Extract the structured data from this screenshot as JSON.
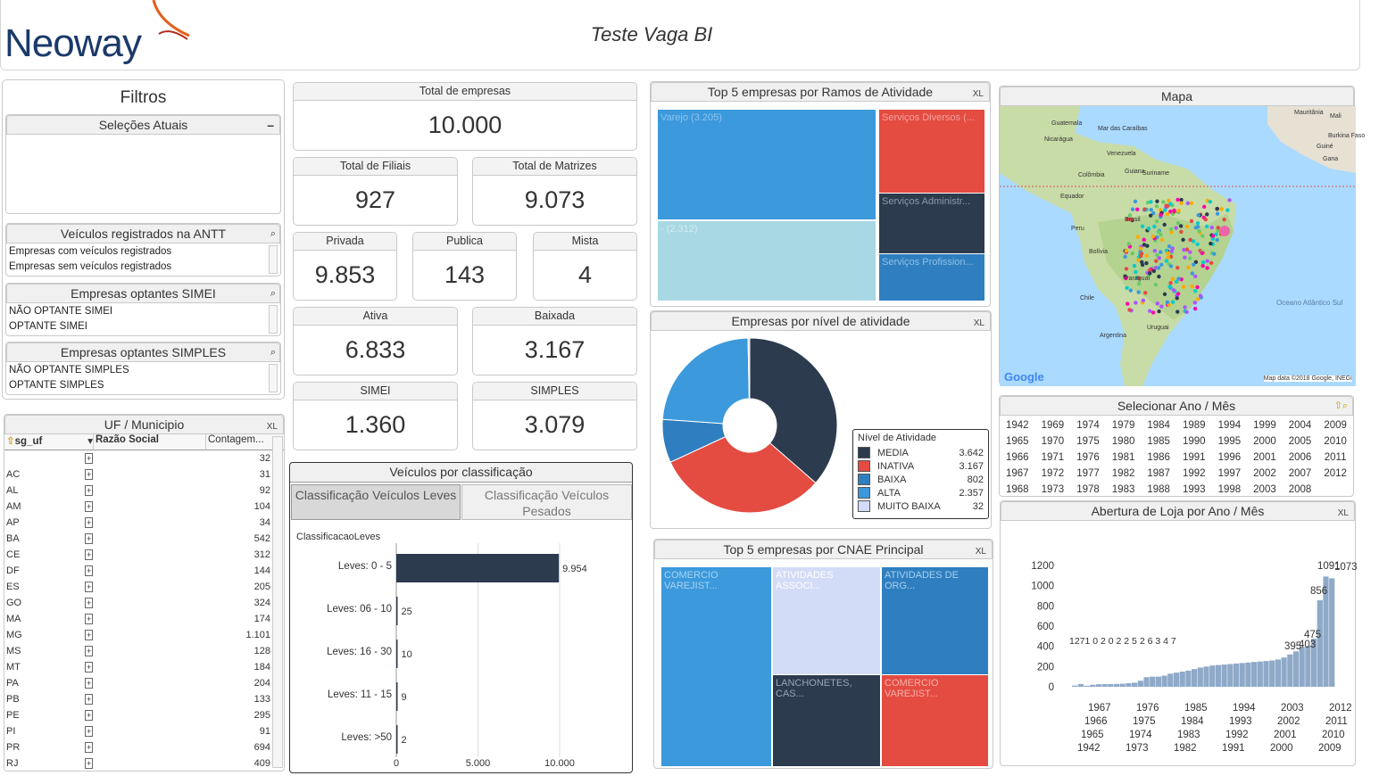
{
  "header": {
    "logo": "Neoway",
    "title": "Teste Vaga BI"
  },
  "filters": {
    "title": "Filtros",
    "current": {
      "title": "Seleções Atuais",
      "minimize": "–"
    },
    "antt": {
      "title": "Veículos registrados na ANTT",
      "items": [
        "Empresas com veículos registrados",
        "Empresas sem veículos registrados"
      ]
    },
    "simei": {
      "title": "Empresas optantes SIMEI",
      "items": [
        "NÃO OPTANTE SIMEI",
        "OPTANTE SIMEI"
      ]
    },
    "simples": {
      "title": "Empresas optantes SIMPLES",
      "items": [
        "NÃO OPTANTE SIMPLES",
        "OPTANTE SIMPLES"
      ]
    }
  },
  "uf_table": {
    "title": "UF / Municipio",
    "icons": "XL",
    "columns": [
      "sg_uf",
      "Razão Social",
      "Contagem..."
    ],
    "rows": [
      [
        "",
        "32"
      ],
      [
        "AC",
        "31"
      ],
      [
        "AL",
        "92"
      ],
      [
        "AM",
        "104"
      ],
      [
        "AP",
        "34"
      ],
      [
        "BA",
        "542"
      ],
      [
        "CE",
        "312"
      ],
      [
        "DF",
        "144"
      ],
      [
        "ES",
        "205"
      ],
      [
        "GO",
        "324"
      ],
      [
        "MA",
        "174"
      ],
      [
        "MG",
        "1.101"
      ],
      [
        "MS",
        "128"
      ],
      [
        "MT",
        "184"
      ],
      [
        "PA",
        "204"
      ],
      [
        "PB",
        "133"
      ],
      [
        "PE",
        "295"
      ],
      [
        "PI",
        "91"
      ],
      [
        "PR",
        "694"
      ],
      [
        "RJ",
        "409"
      ]
    ]
  },
  "kpis": {
    "total": {
      "label": "Total de empresas",
      "value": "10.000"
    },
    "filiais": {
      "label": "Total de Filiais",
      "value": "927"
    },
    "matrizes": {
      "label": "Total de Matrizes",
      "value": "9.073"
    },
    "privada": {
      "label": "Privada",
      "value": "9.853"
    },
    "publica": {
      "label": "Publica",
      "value": "143"
    },
    "mista": {
      "label": "Mista",
      "value": "4"
    },
    "ativa": {
      "label": "Ativa",
      "value": "6.833"
    },
    "baixada": {
      "label": "Baixada",
      "value": "3.167"
    },
    "simei": {
      "label": "SIMEI",
      "value": "1.360"
    },
    "simples": {
      "label": "SIMPLES",
      "value": "3.079"
    }
  },
  "veiculos": {
    "title": "Veículos por classificação",
    "tabs": [
      "Classificação Veículos Leves",
      "Classificação Veículos Pesados"
    ],
    "chart_label": "ClassificacaoLeves"
  },
  "treemap1": {
    "title": "Top 5 empresas por Ramos de Atividade",
    "icons": "XL",
    "cells": [
      {
        "label": "Varejo (3.205)",
        "color": "#3b99dc"
      },
      {
        "label": "- (2.312)",
        "color": "#a8d8e3"
      },
      {
        "label": "Serviços Diversos (...",
        "color": "#e44b41"
      },
      {
        "label": "Serviços Administr...",
        "color": "#2c3b4e"
      },
      {
        "label": "Serviços Profission...",
        "color": "#2f7fc0"
      }
    ]
  },
  "pie": {
    "title": "Empresas por nível de atividade",
    "icons": "XL",
    "legend_title": "Nível de Atividade"
  },
  "treemap2": {
    "title": "Top 5 empresas por CNAE Principal",
    "icons": "XL",
    "cells": [
      {
        "label": "COMERCIO VAREJIST...",
        "color": "#3b99dc"
      },
      {
        "label": "ATIVIDADES ASSOCI...",
        "color": "#d3dcf6"
      },
      {
        "label": "ATIVIDADES DE ORG...",
        "color": "#2f7fc0"
      },
      {
        "label": "LANCHONETES, CAS...",
        "color": "#2c3b4e"
      },
      {
        "label": "COMERCIO VAREJIST...",
        "color": "#e44b41"
      }
    ]
  },
  "map": {
    "title": "Mapa",
    "labels": [
      "Mauritânia",
      "Mali",
      "Burkina Faso",
      "Guiné",
      "Gana",
      "Guatemala",
      "Nicarágua",
      "Mar das Caraíbas",
      "Venezuela",
      "Colômbia",
      "Guiana",
      "Suriname",
      "Equador",
      "Peru",
      "Brasil",
      "Bolívia",
      "Paraguai",
      "Chile",
      "Argentina",
      "Uruguai",
      "Oceano Atlântico Sul"
    ],
    "google": "Google",
    "attribution": "Map data ©2018 Google, INEGI"
  },
  "ano_mes": {
    "title": "Selecionar Ano / Mês",
    "columns": [
      [
        "1942",
        "1965",
        "1966",
        "1967",
        "1968"
      ],
      [
        "1969",
        "1970",
        "1971",
        "1972",
        "1973"
      ],
      [
        "1974",
        "1975",
        "1976",
        "1977",
        "1978"
      ],
      [
        "1979",
        "1980",
        "1981",
        "1982",
        "1983"
      ],
      [
        "1984",
        "1985",
        "1986",
        "1987",
        "1988"
      ],
      [
        "1989",
        "1990",
        "1991",
        "1992",
        "1993"
      ],
      [
        "1994",
        "1995",
        "1996",
        "1997",
        "1998"
      ],
      [
        "1999",
        "2000",
        "2001",
        "2002",
        "2003"
      ],
      [
        "2004",
        "2005",
        "2006",
        "2007",
        "2008"
      ],
      [
        "2009",
        "2010",
        "2011",
        "2012"
      ]
    ]
  },
  "abertura": {
    "title": "Abertura de Loja por Ano / Mês",
    "icons": "XL",
    "xlabels_rows": [
      [
        "1967",
        "1976",
        "1985",
        "1994",
        "2003",
        "2012"
      ],
      [
        "1966",
        "1975",
        "1984",
        "1993",
        "2002",
        "2011"
      ],
      [
        "1965",
        "1974",
        "1983",
        "1992",
        "2001",
        "2010"
      ],
      [
        "1942",
        "1973",
        "1982",
        "1991",
        "2000",
        "2009"
      ]
    ],
    "annot": [
      "1091",
      "1073",
      "856",
      "475",
      "403",
      "395"
    ]
  },
  "chart_data": [
    {
      "type": "bar",
      "title": "Veículos por classificação",
      "xlabel": "",
      "ylabel": "ClassificacaoLeves",
      "categories": [
        "Leves: 0 - 5",
        "Leves: 06 - 10",
        "Leves: 16 - 30",
        "Leves: 11 - 15",
        "Leves: >50"
      ],
      "values": [
        9954,
        25,
        10,
        9,
        2
      ],
      "value_labels": [
        "9.954",
        "25",
        "10",
        "9",
        "2"
      ],
      "xlim": [
        0,
        10000
      ],
      "xticks": [
        "0",
        "5.000",
        "10.000"
      ],
      "bar_color": "#2c3b4e"
    },
    {
      "type": "pie",
      "title": "Empresas por nível de atividade",
      "labels": [
        "MEDIA",
        "INATIVA",
        "BAIXA",
        "ALTA",
        "MUITO BAIXA"
      ],
      "values": [
        3642,
        3167,
        802,
        2357,
        32
      ],
      "value_labels": [
        "3.642",
        "3.167",
        "802",
        "2.357",
        "32"
      ],
      "colors": [
        "#2c3b4e",
        "#e44b41",
        "#2f7fc0",
        "#3b99dc",
        "#d3dcf6"
      ]
    },
    {
      "type": "bar",
      "title": "Abertura de Loja por Ano / Mês",
      "ylim": [
        0,
        1200
      ],
      "yticks": [
        "1200",
        "1000",
        "800",
        "600",
        "400",
        "200",
        "0"
      ],
      "values": [
        12,
        27,
        10,
        20,
        25,
        26,
        27,
        28,
        30,
        35,
        40,
        60,
        95,
        100,
        100,
        110,
        130,
        140,
        150,
        160,
        175,
        190,
        200,
        210,
        215,
        220,
        225,
        230,
        235,
        240,
        245,
        250,
        255,
        260,
        270,
        290,
        320,
        350,
        395,
        403,
        475,
        856,
        1091,
        1073
      ],
      "bar_color": "#8fa9c8"
    },
    {
      "type": "table",
      "title": "Veículos por classificação"
    }
  ]
}
